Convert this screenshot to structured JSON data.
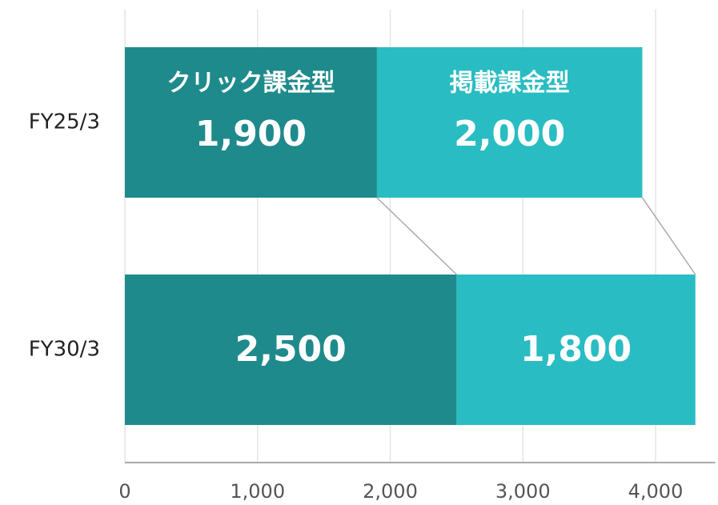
{
  "chart_data": {
    "type": "stacked-barh",
    "categories": [
      "FY25/3",
      "FY30/3"
    ],
    "series": [
      {
        "name": "クリック課金型",
        "color": "#1f8a8c",
        "values": [
          1900,
          2500
        ],
        "value_labels": [
          "1,900",
          "2,500"
        ]
      },
      {
        "name": "掲載課金型",
        "color": "#29bcc3",
        "values": [
          2000,
          1800
        ],
        "value_labels": [
          "2,000",
          "1,800"
        ]
      }
    ],
    "xlim": [
      0,
      4450
    ],
    "xticks": [
      0,
      {
        "value": 1000,
        "label": "1,000"
      },
      {
        "value": 2000,
        "label": "2,000"
      },
      {
        "value": 3000,
        "label": "3,000"
      },
      {
        "value": 4000,
        "label": "4,000"
      }
    ],
    "grid": true
  }
}
